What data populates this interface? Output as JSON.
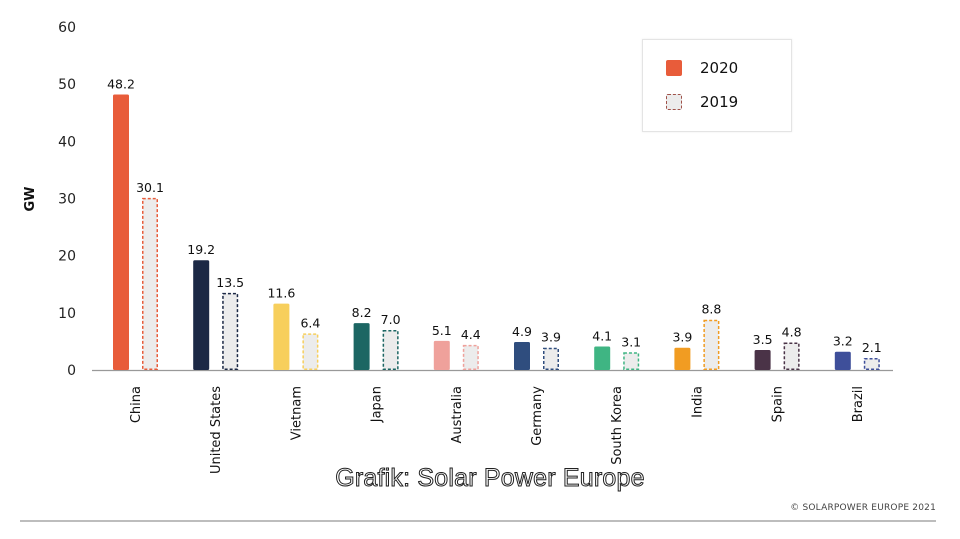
{
  "chart_data": {
    "type": "bar",
    "title": "",
    "ylabel": "GW",
    "xlabel": "",
    "ylim": [
      0,
      60
    ],
    "yticks": [
      0,
      10,
      20,
      30,
      40,
      50,
      60
    ],
    "grid": false,
    "legend_position": "top-right",
    "categories": [
      "China",
      "United States",
      "Vietnam",
      "Japan",
      "Australia",
      "Germany",
      "South Korea",
      "India",
      "Spain",
      "Brazil"
    ],
    "series": [
      {
        "name": "2020",
        "style": "solid",
        "values": [
          48.2,
          19.2,
          11.6,
          8.2,
          5.1,
          4.9,
          4.1,
          3.9,
          3.5,
          3.2
        ],
        "value_labels": [
          "48.2",
          "19.2",
          "11.6",
          "8.2",
          "5.1",
          "4.9",
          "4.1",
          "3.9",
          "3.5",
          "3.2"
        ]
      },
      {
        "name": "2019",
        "style": "dashed",
        "values": [
          30.1,
          13.5,
          6.4,
          7.0,
          4.4,
          3.9,
          3.1,
          8.8,
          4.8,
          2.1
        ],
        "value_labels": [
          "30.1",
          "13.5",
          "6.4",
          "7.0",
          "4.4",
          "3.9",
          "3.1",
          "8.8",
          "4.8",
          "2.1"
        ]
      }
    ],
    "category_colors": [
      "#e85c3a",
      "#1b2845",
      "#f7cf5c",
      "#1c6663",
      "#efa19b",
      "#2f4d7e",
      "#3fb583",
      "#f19c22",
      "#4a3347",
      "#3e4f9a"
    ],
    "dashed_fill": "#ececec"
  },
  "legend": {
    "items": [
      {
        "label": "2020",
        "color": "#e85c3a"
      },
      {
        "label": "2019",
        "color": "#a0524a"
      }
    ]
  },
  "caption": "Grafik: Solar Power Europe",
  "copyright": "© SOLARPOWER EUROPE 2021"
}
